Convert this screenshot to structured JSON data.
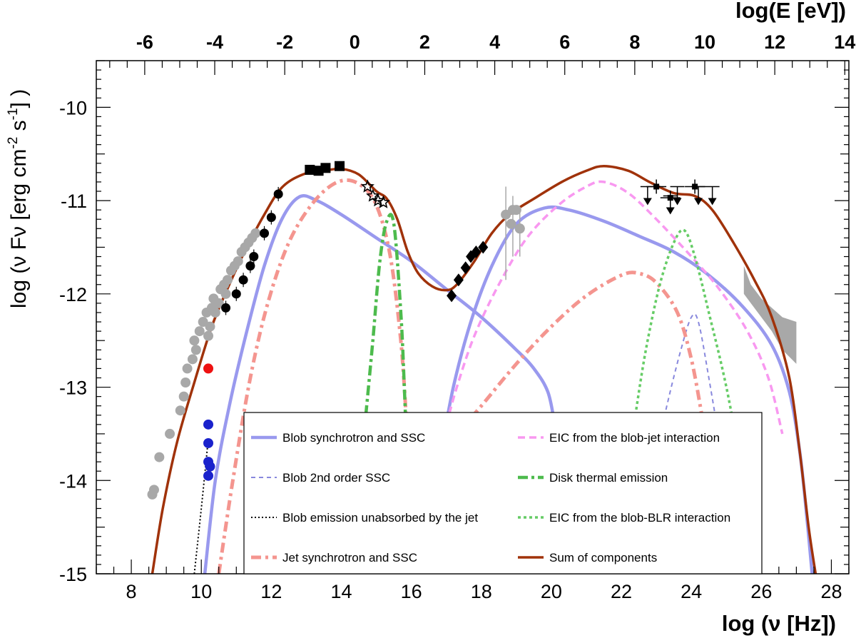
{
  "chart_data": {
    "type": "line",
    "xlabel": "log (ν [Hz])",
    "ylabel_parts": [
      "log (ν Fν [erg cm",
      "-2",
      " s",
      "-1",
      "] )"
    ],
    "top_xlabel": "log(E [eV])",
    "xlim": [
      7,
      28.5
    ],
    "ylim": [
      -15,
      -9.5
    ],
    "top_xlim": [
      -7.3834,
      14.1166
    ],
    "x_ticks": [
      "8",
      "10",
      "12",
      "14",
      "16",
      "18",
      "20",
      "22",
      "24",
      "26",
      "28"
    ],
    "y_ticks": [
      "-10",
      "-11",
      "-12",
      "-13",
      "-14",
      "-15"
    ],
    "top_ticks": [
      "-6",
      "-4",
      "-2",
      "0",
      "2",
      "4",
      "6",
      "8",
      "10",
      "12",
      "14"
    ],
    "colors": {
      "blob": "#9999ee",
      "blob2": "#8888dd",
      "unabs": "#000000",
      "jet": "#f4958f",
      "eic_jet": "#f898f0",
      "disk": "#4dbb4d",
      "eic_blr": "#66cc66",
      "sum": "#a0320a",
      "gray": "#a8a8a8",
      "blue": "#1a22cc",
      "red": "#ee1111",
      "black": "#000000"
    },
    "legend": [
      {
        "key": "blob",
        "label": "Blob synchrotron and SSC",
        "style": "solid"
      },
      {
        "key": "eic_jet",
        "label": "EIC from the blob-jet interaction",
        "style": "dashed"
      },
      {
        "key": "blob2",
        "label": "Blob 2nd order SSC",
        "style": "dashed-thin"
      },
      {
        "key": "disk",
        "label": "Disk thermal emission",
        "style": "dashdot"
      },
      {
        "key": "unabs",
        "label": "Blob emission unabsorbed by the jet",
        "style": "dotted"
      },
      {
        "key": "eic_blr",
        "label": "EIC from the blob-BLR interaction",
        "style": "dotted-green"
      },
      {
        "key": "jet",
        "label": "Jet synchrotron and SSC",
        "style": "dashdot"
      },
      {
        "key": "sum",
        "label": "Sum of components",
        "style": "solid"
      }
    ],
    "series": [
      {
        "key": "blob",
        "points": [
          [
            10.1,
            -15.0
          ],
          [
            10.4,
            -14.0
          ],
          [
            10.8,
            -13.2
          ],
          [
            11.3,
            -12.4
          ],
          [
            11.8,
            -11.7
          ],
          [
            12.3,
            -11.2
          ],
          [
            12.8,
            -10.96
          ],
          [
            13.3,
            -11.0
          ],
          [
            14.0,
            -11.15
          ],
          [
            15.0,
            -11.4
          ],
          [
            16.0,
            -11.65
          ],
          [
            17.0,
            -11.95
          ],
          [
            18.0,
            -12.25
          ],
          [
            19.0,
            -12.6
          ],
          [
            19.5,
            -12.8
          ],
          [
            19.9,
            -13.05
          ],
          [
            20.1,
            -13.4
          ],
          [
            20.3,
            -13.8
          ]
        ]
      },
      {
        "key": "blob",
        "points": [
          [
            16.8,
            -13.8
          ],
          [
            17.2,
            -13.0
          ],
          [
            17.7,
            -12.3
          ],
          [
            18.3,
            -11.7
          ],
          [
            19.0,
            -11.25
          ],
          [
            19.8,
            -11.08
          ],
          [
            20.5,
            -11.1
          ],
          [
            21.5,
            -11.22
          ],
          [
            22.5,
            -11.38
          ],
          [
            23.5,
            -11.55
          ],
          [
            24.5,
            -11.8
          ],
          [
            25.5,
            -12.15
          ],
          [
            26.3,
            -12.55
          ],
          [
            26.8,
            -13.05
          ],
          [
            27.1,
            -13.7
          ],
          [
            27.3,
            -14.4
          ],
          [
            27.45,
            -15.0
          ]
        ]
      },
      {
        "key": "blob2",
        "points": [
          [
            22.9,
            -13.9
          ],
          [
            23.3,
            -13.2
          ],
          [
            23.7,
            -12.6
          ],
          [
            24.0,
            -12.25
          ],
          [
            24.2,
            -12.3
          ],
          [
            24.5,
            -12.9
          ],
          [
            24.9,
            -13.8
          ]
        ]
      },
      {
        "key": "unabs",
        "points": [
          [
            9.8,
            -15.0
          ],
          [
            10.0,
            -14.3
          ],
          [
            10.2,
            -13.55
          ]
        ]
      },
      {
        "key": "jet",
        "points": [
          [
            10.5,
            -15.0
          ],
          [
            10.9,
            -14.0
          ],
          [
            11.4,
            -12.9
          ],
          [
            11.9,
            -12.1
          ],
          [
            12.5,
            -11.45
          ],
          [
            13.2,
            -11.02
          ],
          [
            13.9,
            -10.8
          ],
          [
            14.5,
            -10.82
          ],
          [
            15.0,
            -11.05
          ],
          [
            15.4,
            -11.6
          ],
          [
            15.7,
            -12.5
          ],
          [
            15.85,
            -13.3
          ]
        ]
      },
      {
        "key": "jet",
        "points": [
          [
            17.3,
            -13.5
          ],
          [
            18.0,
            -13.2
          ],
          [
            19.0,
            -12.75
          ],
          [
            20.0,
            -12.35
          ],
          [
            21.0,
            -12.02
          ],
          [
            22.0,
            -11.8
          ],
          [
            22.5,
            -11.78
          ],
          [
            23.0,
            -11.88
          ],
          [
            23.6,
            -12.2
          ],
          [
            24.0,
            -12.7
          ],
          [
            24.3,
            -13.3
          ]
        ]
      },
      {
        "key": "eic_jet",
        "points": [
          [
            17.0,
            -13.4
          ],
          [
            17.3,
            -13.0
          ],
          [
            17.8,
            -12.45
          ],
          [
            18.5,
            -11.9
          ],
          [
            19.3,
            -11.4
          ],
          [
            20.2,
            -11.05
          ],
          [
            21.0,
            -10.85
          ],
          [
            21.5,
            -10.8
          ],
          [
            22.2,
            -10.92
          ],
          [
            23.0,
            -11.2
          ],
          [
            24.0,
            -11.6
          ],
          [
            24.8,
            -11.95
          ],
          [
            25.6,
            -12.4
          ],
          [
            26.2,
            -12.9
          ],
          [
            26.6,
            -13.5
          ]
        ]
      },
      {
        "key": "disk",
        "points": [
          [
            14.7,
            -13.3
          ],
          [
            14.9,
            -12.5
          ],
          [
            15.1,
            -11.65
          ],
          [
            15.3,
            -11.22
          ],
          [
            15.5,
            -11.25
          ],
          [
            15.7,
            -12.2
          ],
          [
            15.8,
            -13.0
          ],
          [
            15.85,
            -13.5
          ]
        ]
      },
      {
        "key": "eic_blr",
        "points": [
          [
            22.4,
            -13.3
          ],
          [
            22.7,
            -12.6
          ],
          [
            23.1,
            -11.9
          ],
          [
            23.5,
            -11.45
          ],
          [
            23.8,
            -11.32
          ],
          [
            24.1,
            -11.6
          ],
          [
            24.5,
            -12.2
          ],
          [
            25.0,
            -13.0
          ],
          [
            25.5,
            -14.0
          ],
          [
            26.0,
            -15.0
          ]
        ]
      },
      {
        "key": "sum",
        "points": [
          [
            8.6,
            -15.0
          ],
          [
            8.9,
            -14.3
          ],
          [
            9.3,
            -13.6
          ],
          [
            9.8,
            -12.95
          ],
          [
            10.3,
            -12.35
          ],
          [
            10.8,
            -11.9
          ],
          [
            11.3,
            -11.5
          ],
          [
            11.8,
            -11.15
          ],
          [
            12.3,
            -10.86
          ],
          [
            12.9,
            -10.72
          ],
          [
            13.5,
            -10.68
          ],
          [
            14.0,
            -10.66
          ],
          [
            14.5,
            -10.72
          ],
          [
            15.0,
            -10.9
          ],
          [
            15.3,
            -10.98
          ],
          [
            15.6,
            -11.2
          ],
          [
            15.9,
            -11.55
          ],
          [
            16.2,
            -11.78
          ],
          [
            16.6,
            -11.92
          ],
          [
            17.0,
            -11.96
          ],
          [
            17.3,
            -11.9
          ],
          [
            17.8,
            -11.65
          ],
          [
            18.3,
            -11.35
          ],
          [
            18.8,
            -11.15
          ],
          [
            19.5,
            -10.98
          ],
          [
            20.3,
            -10.8
          ],
          [
            21.0,
            -10.68
          ],
          [
            21.5,
            -10.63
          ],
          [
            22.2,
            -10.68
          ],
          [
            22.8,
            -10.8
          ],
          [
            23.5,
            -10.92
          ],
          [
            24.1,
            -10.95
          ],
          [
            24.6,
            -11.1
          ],
          [
            25.2,
            -11.45
          ],
          [
            25.8,
            -11.85
          ],
          [
            26.3,
            -12.25
          ],
          [
            26.8,
            -12.9
          ],
          [
            27.1,
            -13.7
          ],
          [
            27.35,
            -14.5
          ],
          [
            27.55,
            -15.0
          ]
        ]
      }
    ],
    "points": {
      "gray": [
        [
          8.6,
          -14.15
        ],
        [
          8.65,
          -14.1
        ],
        [
          8.8,
          -13.75
        ],
        [
          9.1,
          -13.5
        ],
        [
          9.4,
          -13.25
        ],
        [
          9.5,
          -13.1
        ],
        [
          9.55,
          -12.95
        ],
        [
          9.6,
          -12.8
        ],
        [
          9.75,
          -12.7
        ],
        [
          9.8,
          -12.5
        ],
        [
          9.85,
          -12.6
        ],
        [
          9.95,
          -12.4
        ],
        [
          10.05,
          -12.3
        ],
        [
          10.15,
          -12.2
        ],
        [
          10.2,
          -12.45
        ],
        [
          10.25,
          -12.35
        ],
        [
          10.3,
          -12.15
        ],
        [
          10.35,
          -12.05
        ],
        [
          10.4,
          -12.2
        ],
        [
          10.5,
          -12.1
        ],
        [
          10.55,
          -11.95
        ],
        [
          10.65,
          -11.9
        ],
        [
          10.7,
          -12.0
        ],
        [
          10.75,
          -11.85
        ],
        [
          10.85,
          -11.75
        ],
        [
          10.95,
          -11.7
        ],
        [
          11.05,
          -11.65
        ],
        [
          11.15,
          -11.55
        ],
        [
          11.25,
          -11.5
        ],
        [
          11.35,
          -11.45
        ],
        [
          11.45,
          -11.4
        ],
        [
          11.55,
          -11.35
        ],
        [
          18.85,
          -11.25
        ],
        [
          19.0,
          -11.1
        ],
        [
          19.1,
          -11.3
        ]
      ],
      "blue": [
        [
          10.2,
          -13.4
        ],
        [
          10.2,
          -13.6
        ],
        [
          10.2,
          -13.8
        ],
        [
          10.2,
          -13.95
        ],
        [
          10.25,
          -13.85
        ]
      ],
      "red": [
        [
          10.2,
          -12.8
        ]
      ],
      "black_circle": [
        [
          10.7,
          -12.15
        ],
        [
          11.0,
          -12.0
        ],
        [
          11.2,
          -11.85
        ],
        [
          11.4,
          -11.7
        ],
        [
          11.5,
          -11.6
        ],
        [
          11.8,
          -11.35
        ],
        [
          12.0,
          -11.18
        ],
        [
          12.2,
          -10.93
        ]
      ],
      "black_square": [
        [
          13.1,
          -10.67
        ],
        [
          13.35,
          -10.68
        ],
        [
          13.55,
          -10.65
        ],
        [
          13.95,
          -10.63
        ]
      ],
      "black_star": [
        [
          14.75,
          -10.85
        ],
        [
          14.9,
          -10.95
        ],
        [
          15.05,
          -11.0
        ],
        [
          15.2,
          -11.02
        ]
      ],
      "black_diamond": [
        [
          17.15,
          -12.02
        ],
        [
          17.35,
          -11.85
        ],
        [
          17.55,
          -11.72
        ],
        [
          17.7,
          -11.6
        ],
        [
          17.85,
          -11.55
        ],
        [
          18.05,
          -11.5
        ]
      ],
      "gray_err": [
        [
          18.7,
          -11.15,
          -11.85,
          -10.85
        ],
        [
          18.9,
          -11.1,
          -11.6,
          -10.95
        ],
        [
          19.1,
          -11.3,
          -11.6,
          -11.1
        ]
      ],
      "black_upper": [
        [
          22.75,
          -10.85
        ],
        [
          23.6,
          -10.85
        ],
        [
          23.4,
          -10.95
        ],
        [
          24.2,
          -10.85
        ],
        [
          24.6,
          -10.85
        ]
      ],
      "black_cross": [
        [
          23.0,
          -10.85
        ],
        [
          24.1,
          -10.85
        ],
        [
          23.4,
          -10.97
        ]
      ],
      "gray_band": [
        [
          25.5,
          -11.7
        ],
        [
          25.7,
          -11.9
        ],
        [
          26.0,
          -12.05
        ],
        [
          26.3,
          -12.15
        ],
        [
          26.6,
          -12.25
        ],
        [
          27.0,
          -12.3
        ],
        [
          27.0,
          -12.75
        ],
        [
          26.6,
          -12.6
        ],
        [
          26.3,
          -12.4
        ],
        [
          26.0,
          -12.25
        ],
        [
          25.7,
          -12.1
        ],
        [
          25.5,
          -12.0
        ]
      ]
    }
  }
}
